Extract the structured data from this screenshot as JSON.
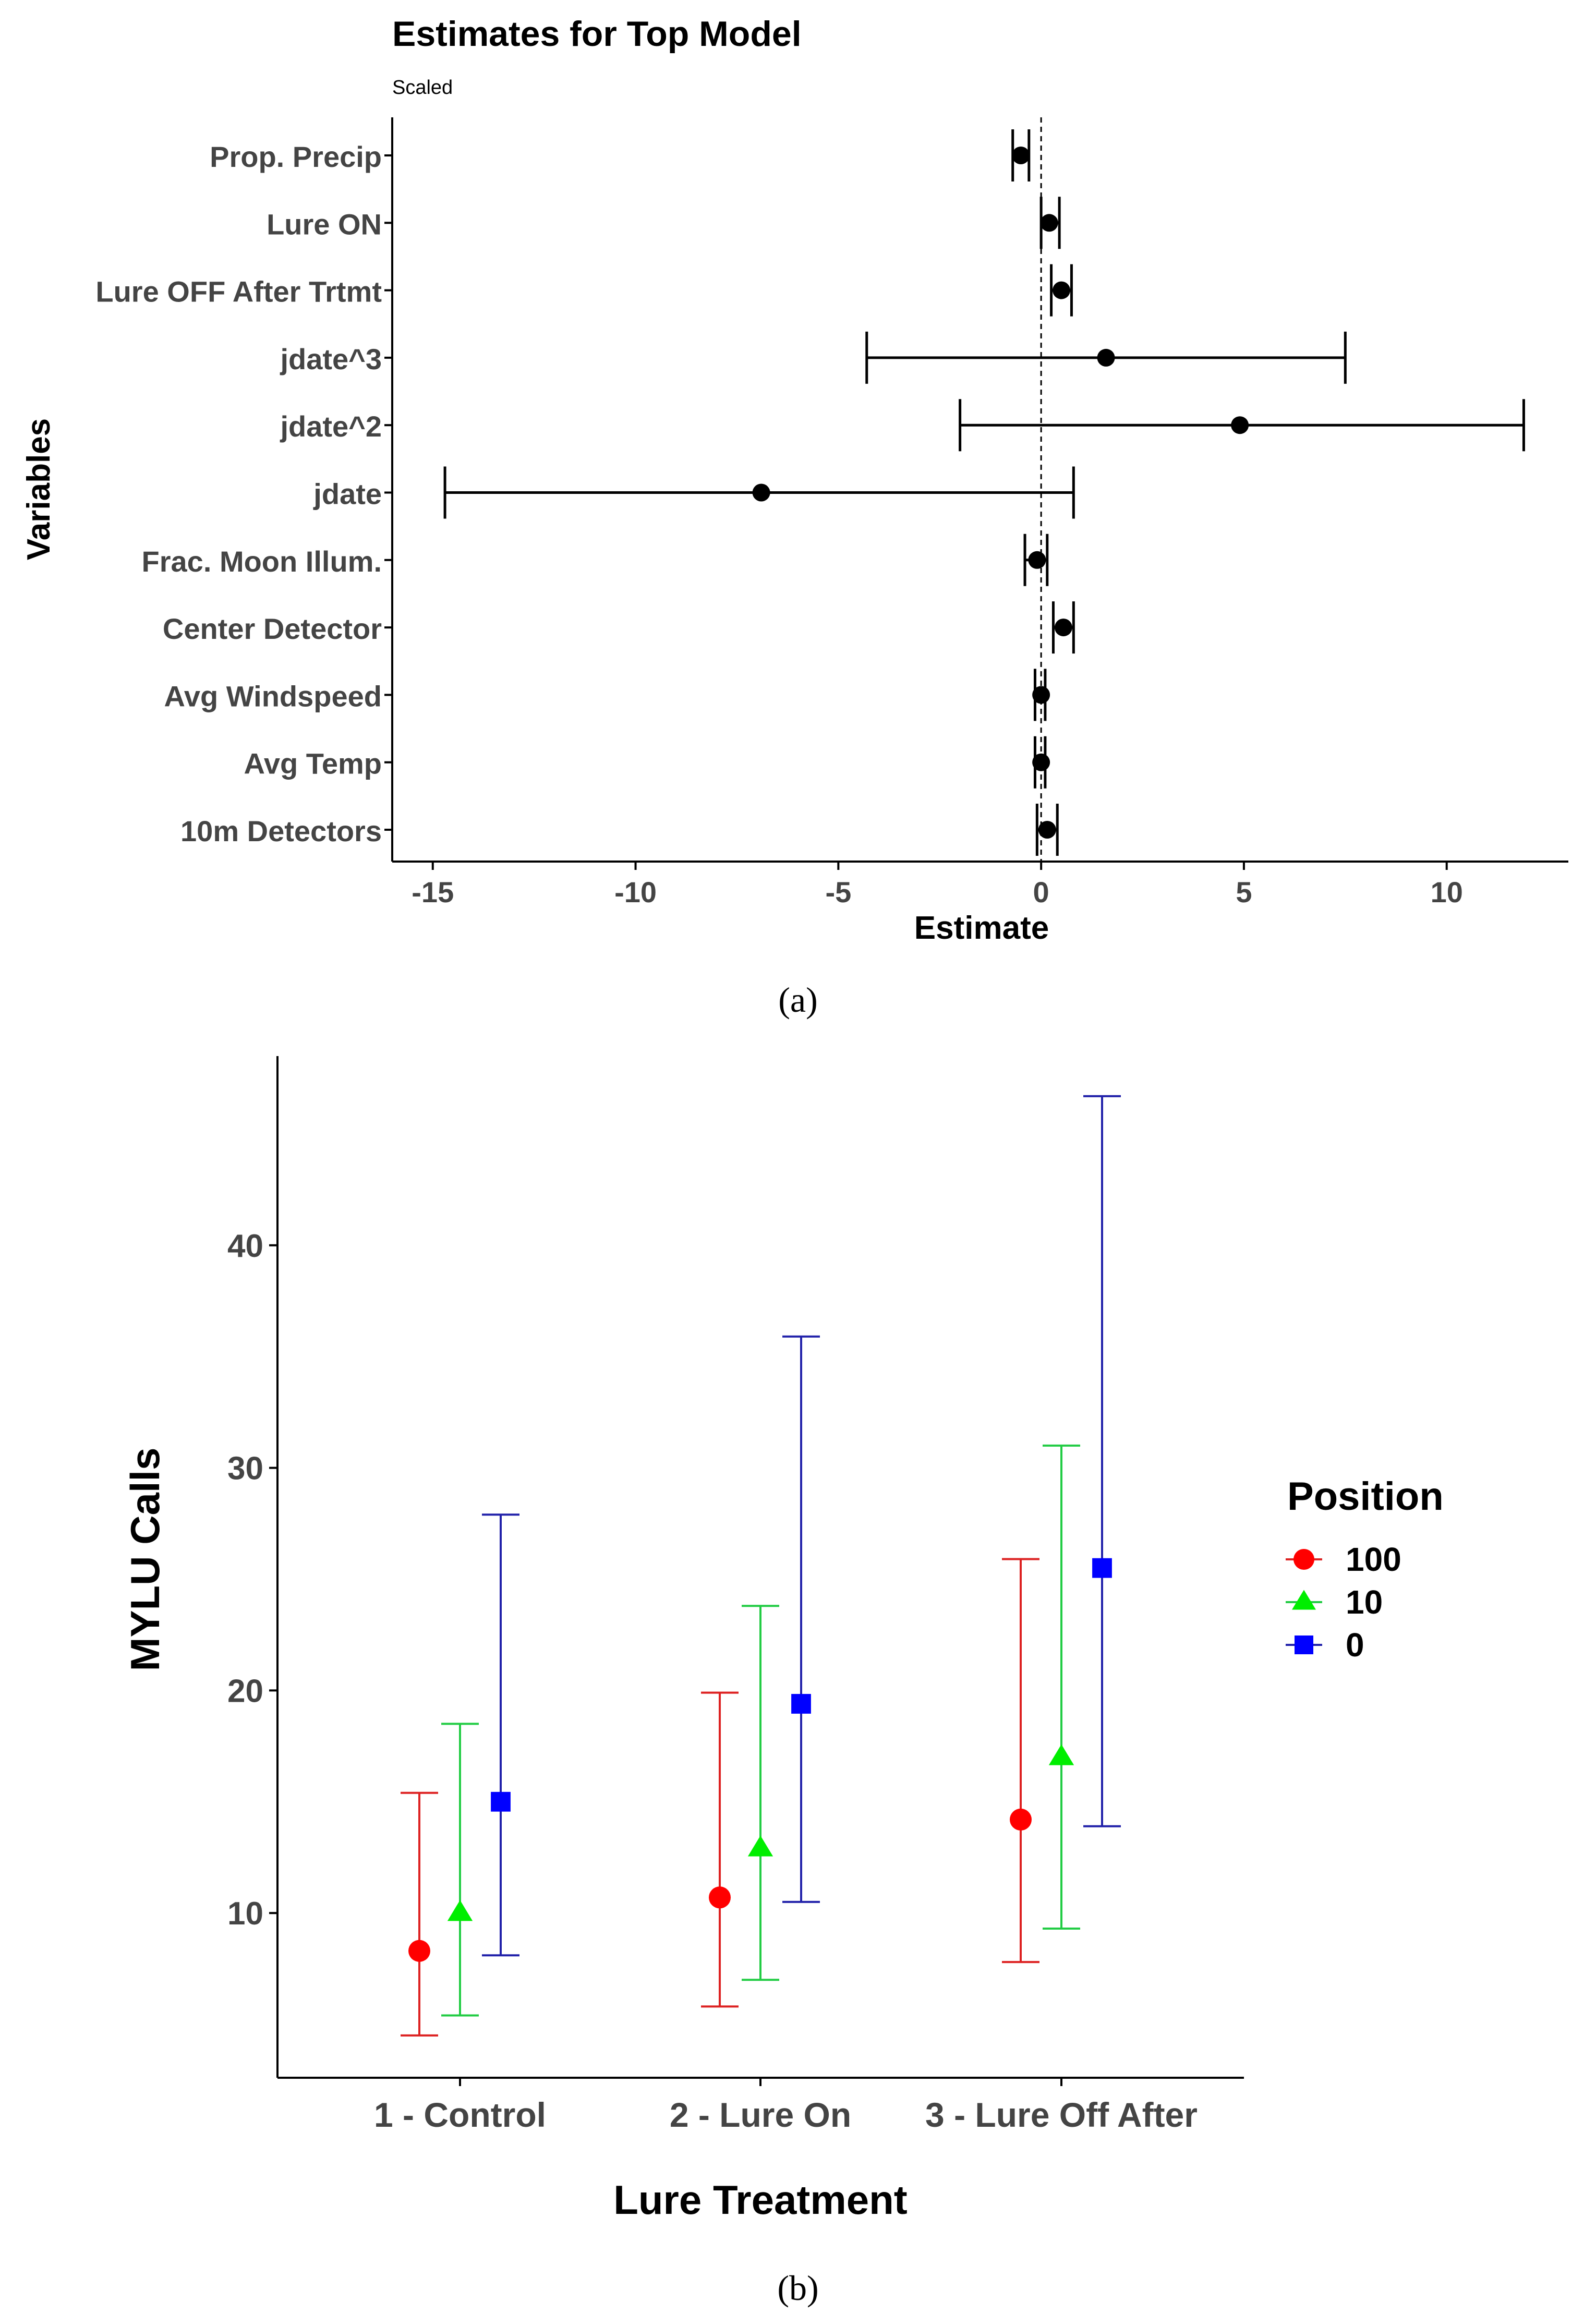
{
  "chart_data": [
    {
      "id": "a",
      "type": "forest",
      "title": "Estimates for Top Model",
      "subtitle": "Scaled",
      "xlabel": "Estimate",
      "ylabel": "Variables",
      "xlim": [
        -16,
        13
      ],
      "xticks": [
        "-15",
        "-10",
        "-5",
        "0",
        "5",
        "10"
      ],
      "xtick_values": [
        -15,
        -10,
        -5,
        0,
        5,
        10
      ],
      "reference_line": 0,
      "caption": "(a)",
      "colors": {
        "points": "#000000",
        "reference": "#000000"
      },
      "rows": [
        {
          "label": "Prop. Precip",
          "estimate": -0.5,
          "lower": -0.7,
          "upper": -0.3
        },
        {
          "label": "Lure ON",
          "estimate": 0.2,
          "lower": 0.0,
          "upper": 0.45
        },
        {
          "label": "Lure OFF After Trtmt",
          "estimate": 0.5,
          "lower": 0.25,
          "upper": 0.75
        },
        {
          "label": "jdate^3",
          "estimate": 1.6,
          "lower": -4.3,
          "upper": 7.5
        },
        {
          "label": "jdate^2",
          "estimate": 4.9,
          "lower": -2.0,
          "upper": 11.9
        },
        {
          "label": "jdate",
          "estimate": -6.9,
          "lower": -14.7,
          "upper": 0.8
        },
        {
          "label": "Frac. Moon Illum.",
          "estimate": -0.1,
          "lower": -0.4,
          "upper": 0.15
        },
        {
          "label": "Center Detector",
          "estimate": 0.55,
          "lower": 0.3,
          "upper": 0.8
        },
        {
          "label": "Avg Windspeed",
          "estimate": 0.0,
          "lower": -0.15,
          "upper": 0.1
        },
        {
          "label": "Avg Temp",
          "estimate": 0.0,
          "lower": -0.15,
          "upper": 0.1
        },
        {
          "label": "10m Detectors",
          "estimate": 0.15,
          "lower": -0.1,
          "upper": 0.4
        }
      ]
    },
    {
      "id": "b",
      "type": "scatter",
      "xlabel": "Lure Treatment",
      "ylabel": "MYLU Calls",
      "ylim": [
        2.6,
        48.5
      ],
      "yticks": [
        "10",
        "20",
        "30",
        "40"
      ],
      "ytick_values": [
        10,
        20,
        30,
        40
      ],
      "categories": [
        "1 - Control",
        "2 - Lure On",
        "3 - Lure Off After"
      ],
      "legend_title": "Position",
      "legend_position": "right",
      "caption": "(b)",
      "series": [
        {
          "name": "100",
          "marker": "circle",
          "color": "#ff0000",
          "bar_color": "#dd2222",
          "offset": -1,
          "values": [
            8.3,
            10.7,
            14.2
          ],
          "lower": [
            4.5,
            5.8,
            7.8
          ],
          "upper": [
            15.4,
            19.9,
            25.9
          ]
        },
        {
          "name": "10",
          "marker": "triangle",
          "color": "#00ee00",
          "bar_color": "#22cc44",
          "offset": 0,
          "values": [
            10.0,
            12.9,
            17.0
          ],
          "lower": [
            5.4,
            7.0,
            9.3
          ],
          "upper": [
            18.5,
            23.8,
            31.0
          ]
        },
        {
          "name": "0",
          "marker": "square",
          "color": "#0000ff",
          "bar_color": "#2222aa",
          "offset": 1,
          "values": [
            15.0,
            19.4,
            25.5
          ],
          "lower": [
            8.1,
            10.5,
            13.9
          ],
          "upper": [
            27.9,
            35.9,
            46.7
          ]
        }
      ]
    }
  ]
}
